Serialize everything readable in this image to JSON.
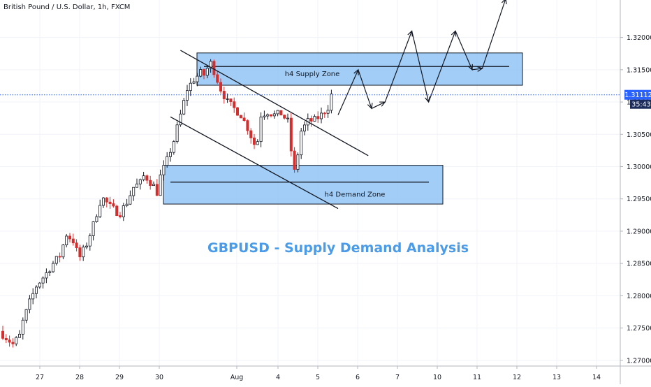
{
  "header": {
    "symbol": "British Pound / U.S. Dollar, 1h, FXCM"
  },
  "chart_data": {
    "type": "candlestick",
    "title": "GBPUSD - Supply Demand Analysis",
    "symbol": "British Pound / U.S. Dollar, 1h, FXCM",
    "x_ticks": [
      "27",
      "28",
      "29",
      "30",
      "Aug",
      "4",
      "5",
      "6",
      "7",
      "10",
      "11",
      "12",
      "13",
      "14"
    ],
    "y_ticks": [
      "1.32000",
      "1.31500",
      "1.31000",
      "1.30500",
      "1.30000",
      "1.29500",
      "1.29000",
      "1.28500",
      "1.28000",
      "1.27500",
      "1.27000"
    ],
    "y_tick_values": [
      1.32,
      1.315,
      1.31,
      1.305,
      1.3,
      1.295,
      1.29,
      1.285,
      1.28,
      1.275,
      1.27
    ],
    "ylim": [
      1.2663,
      1.3258
    ],
    "current_price": "1.31112",
    "countdown": "35:43",
    "up_color": "#131722",
    "down_color": "#d32f2f",
    "accent_color": "#2962ff",
    "zones": [
      {
        "label": "h4 Supply Zone",
        "top": 1.3176,
        "bottom": 1.3126,
        "level": 1.3155
      },
      {
        "label": "h4 Demand Zone",
        "top": 1.3002,
        "bottom": 1.2942,
        "level": 1.2976
      }
    ],
    "price_path": [
      [
        0,
        1.2745
      ],
      [
        2,
        1.2735
      ],
      [
        4,
        1.2725
      ],
      [
        6,
        1.2738
      ],
      [
        7,
        1.276
      ],
      [
        9,
        1.279
      ],
      [
        11,
        1.2815
      ],
      [
        14,
        1.2835
      ],
      [
        16,
        1.285
      ],
      [
        18,
        1.2862
      ],
      [
        20,
        1.2895
      ],
      [
        22,
        1.2885
      ],
      [
        23,
        1.287
      ],
      [
        24,
        1.286
      ],
      [
        26,
        1.288
      ],
      [
        28,
        1.291
      ],
      [
        30,
        1.2945
      ],
      [
        31,
        1.295
      ],
      [
        33,
        1.2938
      ],
      [
        35,
        1.293
      ],
      [
        36,
        1.2928
      ],
      [
        38,
        1.2945
      ],
      [
        40,
        1.2968
      ],
      [
        42,
        1.2975
      ],
      [
        43,
        1.2985
      ],
      [
        44,
        1.2982
      ],
      [
        46,
        1.297
      ],
      [
        47,
        1.296
      ],
      [
        48,
        1.2985
      ],
      [
        50,
        1.301
      ],
      [
        52,
        1.304
      ],
      [
        54,
        1.308
      ],
      [
        56,
        1.312
      ],
      [
        58,
        1.3135
      ],
      [
        60,
        1.3145
      ],
      [
        61,
        1.3142
      ],
      [
        62,
        1.3152
      ],
      [
        63,
        1.316
      ],
      [
        64,
        1.3148
      ],
      [
        66,
        1.312
      ],
      [
        68,
        1.31
      ],
      [
        70,
        1.309
      ],
      [
        72,
        1.308
      ],
      [
        74,
        1.306
      ],
      [
        76,
        1.3035
      ],
      [
        77,
        1.304
      ],
      [
        78,
        1.308
      ],
      [
        80,
        1.3085
      ],
      [
        82,
        1.308
      ],
      [
        84,
        1.3082
      ],
      [
        86,
        1.307
      ],
      [
        87,
        1.3025
      ],
      [
        88,
        1.2992
      ],
      [
        89,
        1.302
      ],
      [
        90,
        1.3055
      ],
      [
        92,
        1.307
      ],
      [
        94,
        1.3072
      ],
      [
        96,
        1.308
      ],
      [
        98,
        1.3092
      ],
      [
        99,
        1.3111
      ]
    ],
    "trendlines": [
      {
        "from": [
          53,
          1.318
        ],
        "to": [
          109,
          1.3017
        ]
      },
      {
        "from": [
          50,
          1.3077
        ],
        "to": [
          100,
          1.2935
        ]
      }
    ],
    "projection_path": [
      [
        100,
        1.308
      ],
      [
        106,
        1.315
      ],
      [
        110,
        1.309
      ],
      [
        114,
        1.31
      ],
      [
        122,
        1.321
      ],
      [
        127,
        1.31
      ],
      [
        135,
        1.321
      ],
      [
        140,
        1.315
      ],
      [
        143,
        1.3152
      ],
      [
        150,
        1.326
      ]
    ]
  }
}
